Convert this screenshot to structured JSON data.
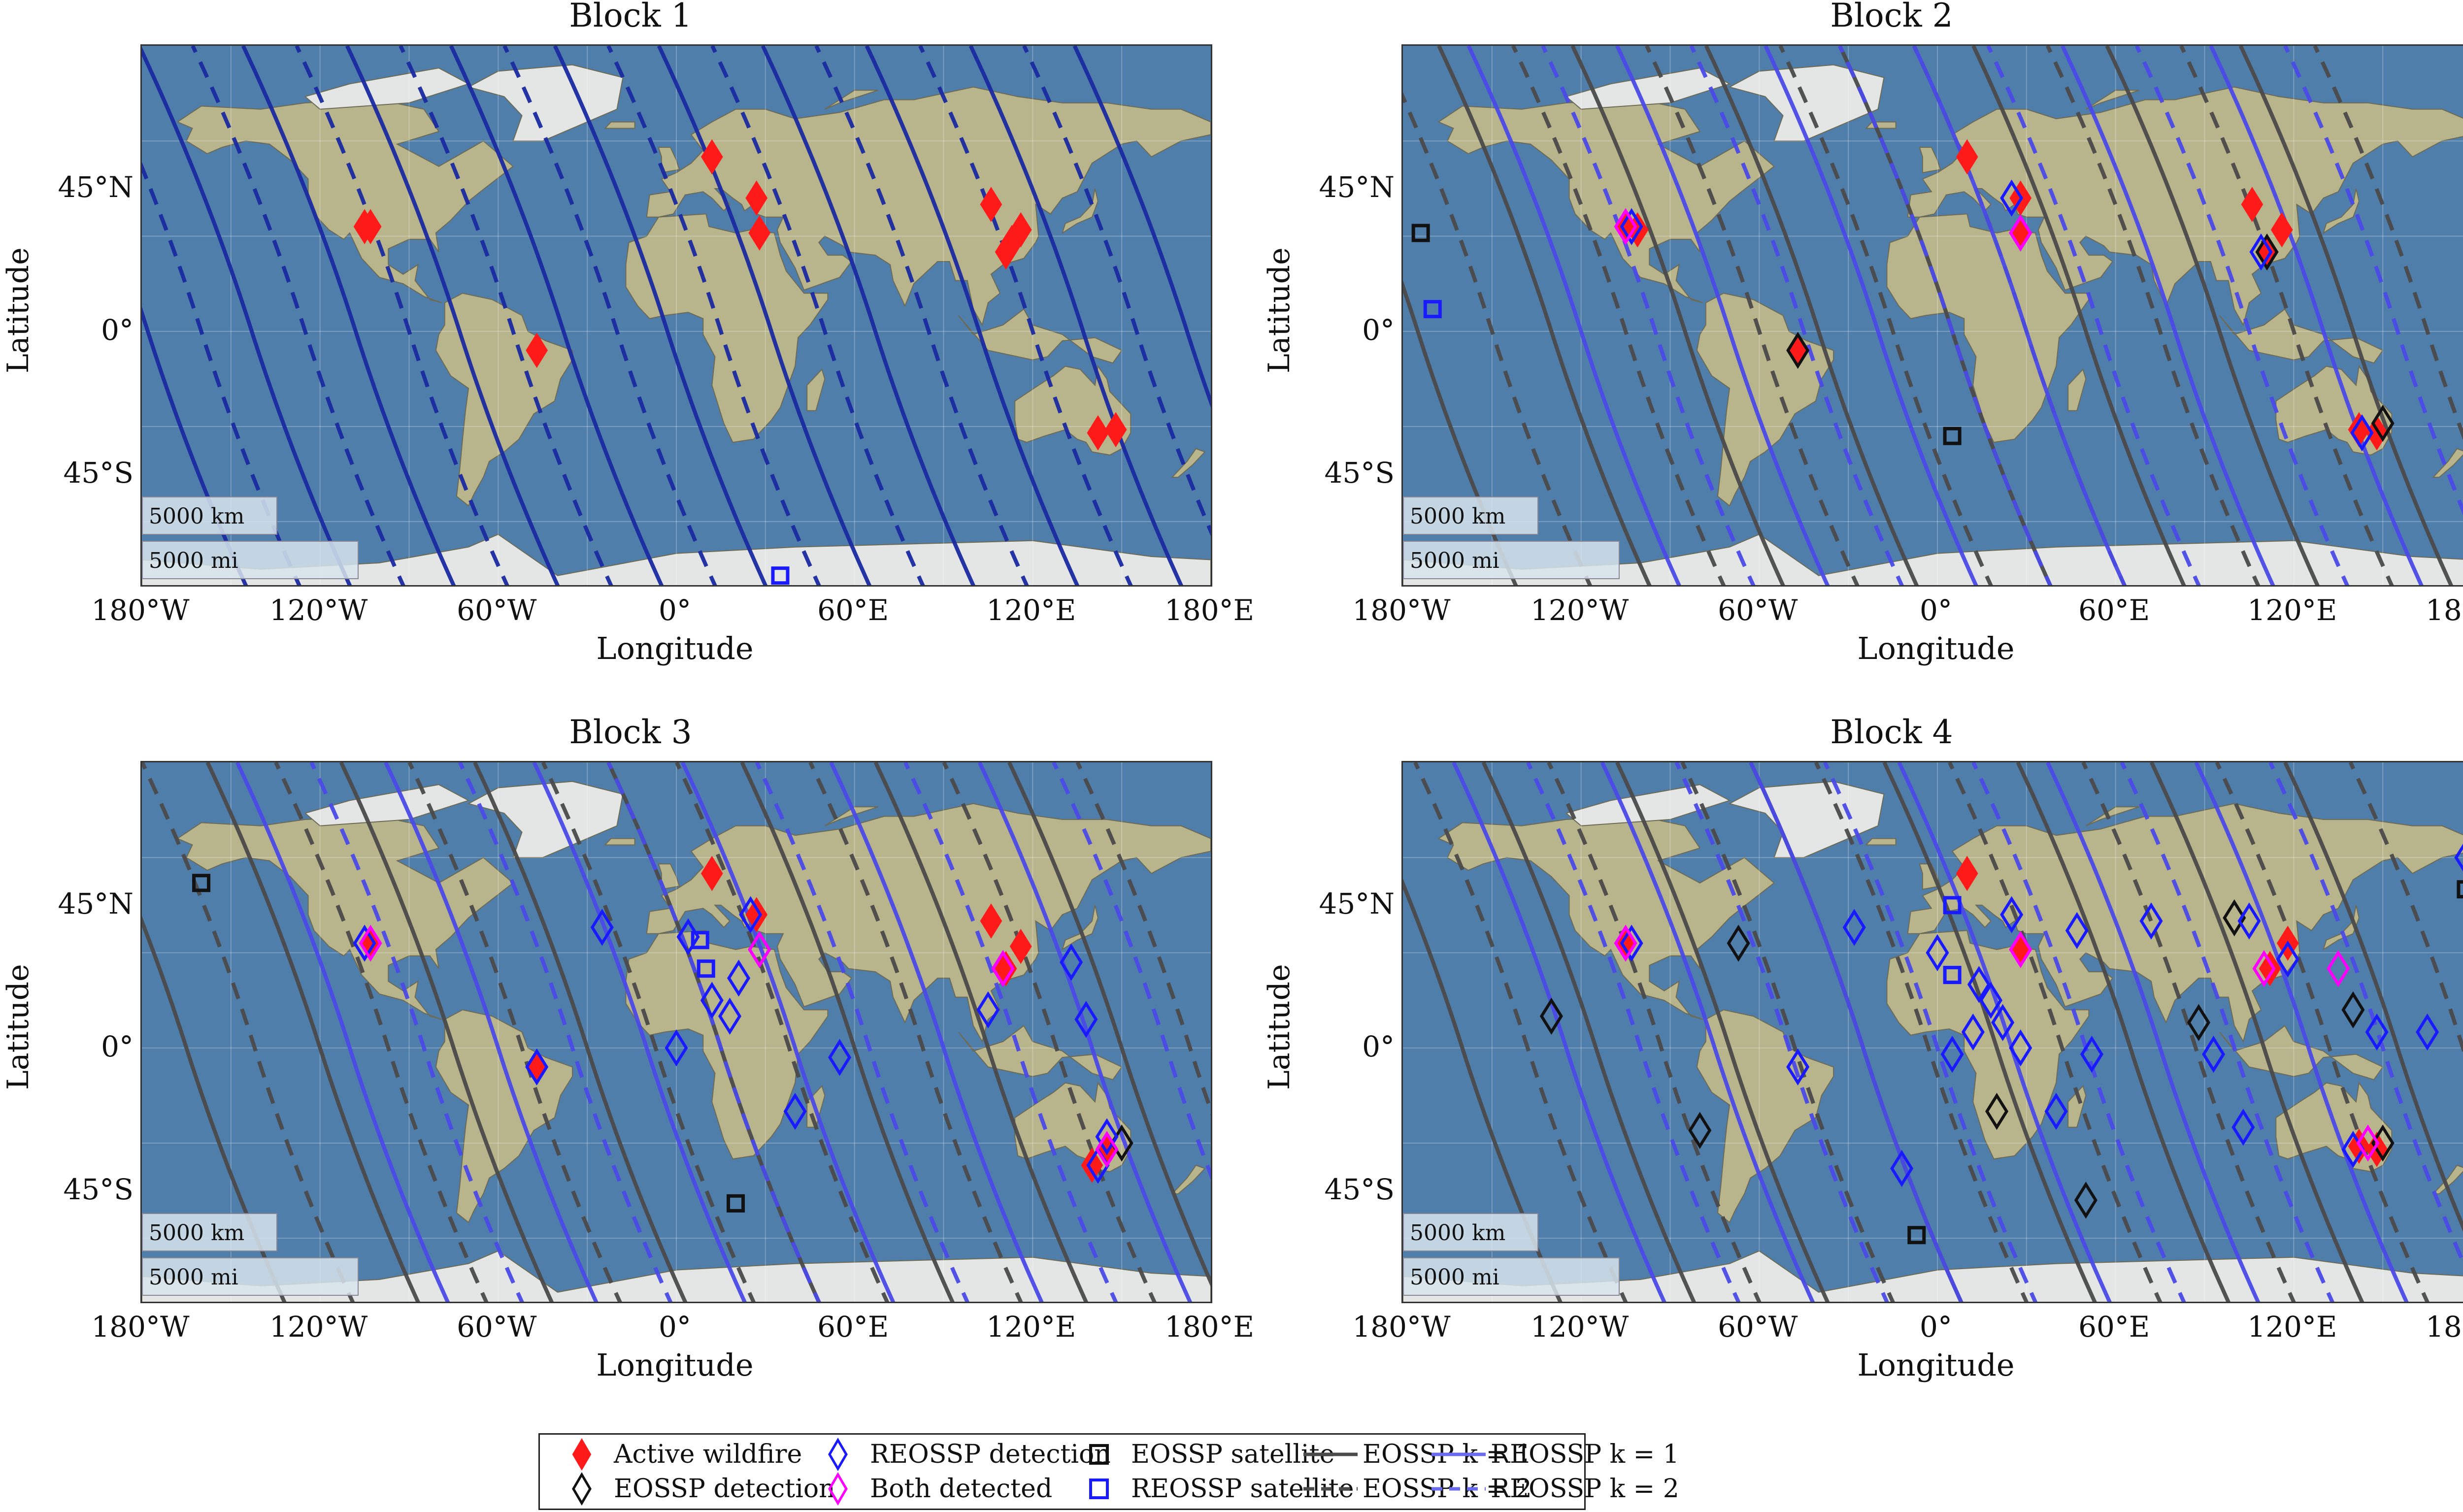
{
  "figure": {
    "panels": [
      {
        "title": "Block 1"
      },
      {
        "title": "Block 2"
      },
      {
        "title": "Block 3"
      },
      {
        "title": "Block 4"
      }
    ],
    "axes": {
      "xlabel": "Longitude",
      "ylabel": "Latitude",
      "xticks": [
        "180°W",
        "120°W",
        "60°W",
        "0°",
        "60°E",
        "120°E",
        "180°E"
      ],
      "yticks": [
        "45°N",
        "0°",
        "45°S"
      ]
    },
    "scalebar": {
      "km": "5000 km",
      "mi": "5000 mi"
    },
    "colors": {
      "wildfire": "#ff1a1a",
      "eossp": "#111111",
      "reossp": "#1a1aff",
      "both": "#ff00ff",
      "eossp_line": "#4a4a4a",
      "reossp_line": "#4a4ae6",
      "block1_line": "#1a2aa0",
      "ocean": "#4f7eab",
      "land": "#b8b48c"
    },
    "legend": {
      "items": [
        {
          "label": "Active wildfire",
          "symbol": "filled-red-diamond"
        },
        {
          "label": "EOSSP detection",
          "symbol": "black-diamond"
        },
        {
          "label": "REOSSP detection",
          "symbol": "blue-diamond"
        },
        {
          "label": "Both detected",
          "symbol": "magenta-diamond"
        },
        {
          "label": "EOSSP satellite",
          "symbol": "black-square"
        },
        {
          "label": "REOSSP satellite",
          "symbol": "blue-square"
        },
        {
          "label": "EOSSP k = 1",
          "symbol": "gray-solid-line"
        },
        {
          "label": "EOSSP k = 2",
          "symbol": "gray-dashed-line"
        },
        {
          "label": "REOSSP k = 1",
          "symbol": "blue-solid-line"
        },
        {
          "label": "REOSSP k = 2",
          "symbol": "blue-dashed-line"
        }
      ]
    }
  },
  "chart_data": [
    {
      "type": "scatter",
      "title": "Block 1",
      "xlabel": "Longitude",
      "ylabel": "Latitude",
      "xlim": [
        -180,
        180
      ],
      "ylim": [
        -80,
        90
      ],
      "series": [
        {
          "name": "Active wildfire",
          "points": [
            [
              -105,
              33
            ],
            [
              -103,
              33
            ],
            [
              -47,
              -6
            ],
            [
              12,
              55
            ],
            [
              27,
              42
            ],
            [
              28,
              31
            ],
            [
              106,
              40
            ],
            [
              116,
              32
            ],
            [
              111,
              25
            ],
            [
              113,
              28
            ],
            [
              148,
              -31
            ],
            [
              142,
              -32
            ]
          ]
        },
        {
          "name": "REOSSP satellite",
          "points": [
            [
              35,
              -77
            ]
          ]
        },
        {
          "name": "REOSSP k = 1 tracks",
          "lon_at_equator": [
            -178,
            -143,
            -108,
            -73,
            -38,
            -3,
            32,
            67,
            102,
            137,
            172
          ]
        },
        {
          "name": "REOSSP k = 2 tracks",
          "lon_at_equator": [
            -160,
            -125,
            -90,
            -55,
            -20,
            15,
            50,
            85,
            120,
            155
          ]
        }
      ]
    },
    {
      "type": "scatter",
      "title": "Block 2",
      "xlabel": "Longitude",
      "ylabel": "Latitude",
      "xlim": [
        -180,
        180
      ],
      "ylim": [
        -80,
        90
      ],
      "series": [
        {
          "name": "Active wildfire",
          "points": [
            [
              -105,
              33
            ],
            [
              -101,
              32
            ],
            [
              -47,
              -6
            ],
            [
              10,
              55
            ],
            [
              28,
              42
            ],
            [
              28,
              31
            ],
            [
              106,
              40
            ],
            [
              116,
              32
            ],
            [
              111,
              25
            ],
            [
              142,
              -31
            ],
            [
              148,
              -32
            ]
          ]
        },
        {
          "name": "EOSSP detection",
          "points": [
            [
              -47,
              -6
            ],
            [
              111,
              25
            ],
            [
              150,
              -29
            ]
          ]
        },
        {
          "name": "REOSSP detection",
          "points": [
            [
              -103,
              33
            ],
            [
              25,
              42
            ],
            [
              28,
              31
            ],
            [
              109,
              25
            ],
            [
              143,
              -32
            ]
          ]
        },
        {
          "name": "Both detected",
          "points": [
            [
              -105,
              33
            ],
            [
              28,
              31
            ]
          ]
        },
        {
          "name": "EOSSP satellite",
          "points": [
            [
              -174,
              31
            ],
            [
              5,
              -33
            ]
          ]
        },
        {
          "name": "REOSSP satellite",
          "points": [
            [
              -170,
              7
            ]
          ]
        },
        {
          "name": "EOSSP k = 1 tracks",
          "lon_at_equator": [
            -175,
            -130,
            -85,
            -40,
            5,
            50,
            95,
            140
          ]
        },
        {
          "name": "EOSSP k = 2 tracks",
          "lon_at_equator": [
            -150,
            -105,
            -60,
            -15,
            30,
            75,
            120,
            165
          ]
        },
        {
          "name": "REOSSP k = 1 tracks",
          "lon_at_equator": [
            -120,
            -70,
            -20,
            30,
            80,
            130
          ]
        },
        {
          "name": "REOSSP k = 2 tracks",
          "lon_at_equator": [
            -95,
            -45,
            5,
            55,
            105,
            155
          ]
        }
      ]
    },
    {
      "type": "scatter",
      "title": "Block 3",
      "xlabel": "Longitude",
      "ylabel": "Latitude",
      "xlim": [
        -180,
        180
      ],
      "ylim": [
        -80,
        90
      ],
      "series": [
        {
          "name": "Active wildfire",
          "points": [
            [
              -103,
              33
            ],
            [
              -47,
              -6
            ],
            [
              12,
              55
            ],
            [
              27,
              42
            ],
            [
              106,
              40
            ],
            [
              116,
              32
            ],
            [
              111,
              25
            ],
            [
              145,
              -32
            ],
            [
              140,
              -37
            ]
          ]
        },
        {
          "name": "EOSSP detection",
          "points": [
            [
              150,
              -30
            ]
          ]
        },
        {
          "name": "REOSSP detection",
          "points": [
            [
              -105,
              33
            ],
            [
              -47,
              -6
            ],
            [
              25,
              42
            ],
            [
              28,
              31
            ],
            [
              -25,
              38
            ],
            [
              4,
              35
            ],
            [
              12,
              15
            ],
            [
              18,
              10
            ],
            [
              21,
              22
            ],
            [
              0,
              0
            ],
            [
              40,
              -20
            ],
            [
              55,
              -3
            ],
            [
              110,
              25
            ],
            [
              105,
              12
            ],
            [
              133,
              27
            ],
            [
              138,
              9
            ],
            [
              145,
              -28
            ],
            [
              142,
              -37
            ]
          ]
        },
        {
          "name": "Both detected",
          "points": [
            [
              -103,
              33
            ],
            [
              28,
              31
            ],
            [
              110,
              25
            ],
            [
              145,
              -32
            ]
          ]
        },
        {
          "name": "EOSSP satellite",
          "points": [
            [
              -160,
              52
            ],
            [
              20,
              -49
            ]
          ]
        },
        {
          "name": "REOSSP satellite",
          "points": [
            [
              8,
              34
            ],
            [
              10,
              25
            ]
          ]
        },
        {
          "name": "EOSSP k = 1 tracks",
          "lon_at_equator": [
            -165,
            -120,
            -75,
            -30,
            15,
            60,
            105,
            150
          ]
        },
        {
          "name": "EOSSP k = 2 tracks",
          "lon_at_equator": [
            -142,
            -97,
            -52,
            -7,
            38,
            83,
            128,
            173
          ]
        },
        {
          "name": "REOSSP k = 1 tracks",
          "lon_at_equator": [
            -110,
            -60,
            -10,
            40,
            90,
            140
          ]
        },
        {
          "name": "REOSSP k = 2 tracks",
          "lon_at_equator": [
            -85,
            -35,
            15,
            65,
            115,
            165
          ]
        }
      ]
    },
    {
      "type": "scatter",
      "title": "Block 4",
      "xlabel": "Longitude",
      "ylabel": "Latitude",
      "xlim": [
        -180,
        180
      ],
      "ylim": [
        -80,
        90
      ],
      "series": [
        {
          "name": "Active wildfire",
          "points": [
            [
              -105,
              33
            ],
            [
              10,
              55
            ],
            [
              28,
              31
            ],
            [
              112,
              25
            ],
            [
              118,
              33
            ],
            [
              142,
              -31
            ],
            [
              148,
              -32
            ]
          ]
        },
        {
          "name": "EOSSP detection",
          "points": [
            [
              -130,
              10
            ],
            [
              -67,
              33
            ],
            [
              -80,
              -26
            ],
            [
              20,
              -20
            ],
            [
              50,
              -48
            ],
            [
              88,
              8
            ],
            [
              100,
              41
            ],
            [
              140,
              12
            ],
            [
              150,
              -30
            ]
          ]
        },
        {
          "name": "REOSSP detection",
          "points": [
            [
              -103,
              33
            ],
            [
              -47,
              -6
            ],
            [
              25,
              42
            ],
            [
              -28,
              38
            ],
            [
              0,
              30
            ],
            [
              14,
              20
            ],
            [
              18,
              15
            ],
            [
              22,
              8
            ],
            [
              28,
              0
            ],
            [
              5,
              -2
            ],
            [
              12,
              5
            ],
            [
              -12,
              -38
            ],
            [
              40,
              -20
            ],
            [
              52,
              -2
            ],
            [
              47,
              37
            ],
            [
              72,
              40
            ],
            [
              93,
              -2
            ],
            [
              103,
              -25
            ],
            [
              105,
              40
            ],
            [
              118,
              28
            ],
            [
              148,
              5
            ],
            [
              140,
              -32
            ],
            [
              165,
              5
            ],
            [
              178,
              60
            ]
          ]
        },
        {
          "name": "Both detected",
          "points": [
            [
              -105,
              33
            ],
            [
              28,
              31
            ],
            [
              110,
              25
            ],
            [
              135,
              25
            ],
            [
              145,
              -30
            ]
          ]
        },
        {
          "name": "EOSSP satellite",
          "points": [
            [
              178,
              50
            ],
            [
              -7,
              -59
            ]
          ]
        },
        {
          "name": "REOSSP satellite",
          "points": [
            [
              5,
              45
            ],
            [
              5,
              23
            ]
          ]
        },
        {
          "name": "EOSSP k = 1 tracks",
          "lon_at_equator": [
            -160,
            -115,
            -70,
            -25,
            20,
            65,
            110,
            155
          ]
        },
        {
          "name": "EOSSP k = 2 tracks",
          "lon_at_equator": [
            -138,
            -93,
            -48,
            -3,
            42,
            87,
            132,
            177
          ]
        },
        {
          "name": "REOSSP k = 1 tracks",
          "lon_at_equator": [
            -125,
            -75,
            -25,
            25,
            75,
            125
          ]
        },
        {
          "name": "REOSSP k = 2 tracks",
          "lon_at_equator": [
            -100,
            -50,
            0,
            50,
            100,
            150
          ]
        }
      ]
    }
  ]
}
